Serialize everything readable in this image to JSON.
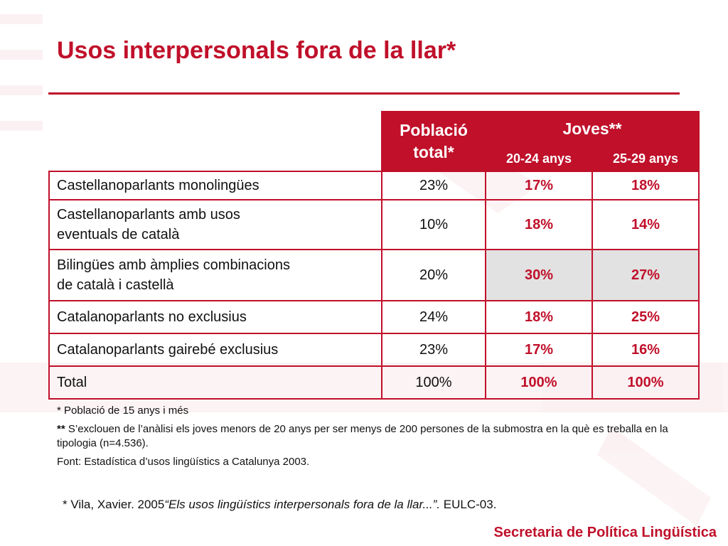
{
  "title": "Usos interpersonals fora de la llar*",
  "table": {
    "col_total_line1": "Població",
    "col_total_line2": "total*",
    "col_group": "Joves**",
    "col_sub1": "20-24 anys",
    "col_sub2": "25-29 anys",
    "rows": [
      {
        "label1": "Castellanoparlants monolingües",
        "label2": "",
        "total": "23%",
        "a": "17%",
        "b": "18%"
      },
      {
        "label1": "Castellanoparlants amb usos",
        "label2": "eventuals de català",
        "total": "10%",
        "a": "18%",
        "b": "14%"
      },
      {
        "label1": "Bilingües amb àmplies combinacions",
        "label2": "de català i castellà",
        "total": "20%",
        "a": "30%",
        "b": "27%"
      },
      {
        "label1": "Catalanoparlants no exclusius",
        "label2": "",
        "total": "24%",
        "a": "18%",
        "b": "25%"
      },
      {
        "label1": "Catalanoparlants gairebé exclusius",
        "label2": "",
        "total": "23%",
        "a": "17%",
        "b": "16%"
      },
      {
        "label1": "Total",
        "label2": "",
        "total": "100%",
        "a": "100%",
        "b": "100%"
      }
    ]
  },
  "notes": {
    "note1": "* Població de 15  anys i més",
    "note2_marker": "**",
    "note2_text": " S’exclouen de l’anàlisi els joves menors de 20 anys per ser menys de 200 persones de la submostra en la què es treballa en la tipologia (n=4.536).",
    "source": "Font: Estadística d’usos lingüístics a Catalunya 2003."
  },
  "reference": {
    "prefix": "* Vila, Xavier. 2005",
    "work": "“Els usos lingüístics interpersonals fora de la llar...”.",
    "suffix": " EULC-03."
  },
  "footer": "Secretaria de Política Lingüística",
  "colors": {
    "accent": "#c0102a",
    "shade": "#e2e2e2"
  }
}
